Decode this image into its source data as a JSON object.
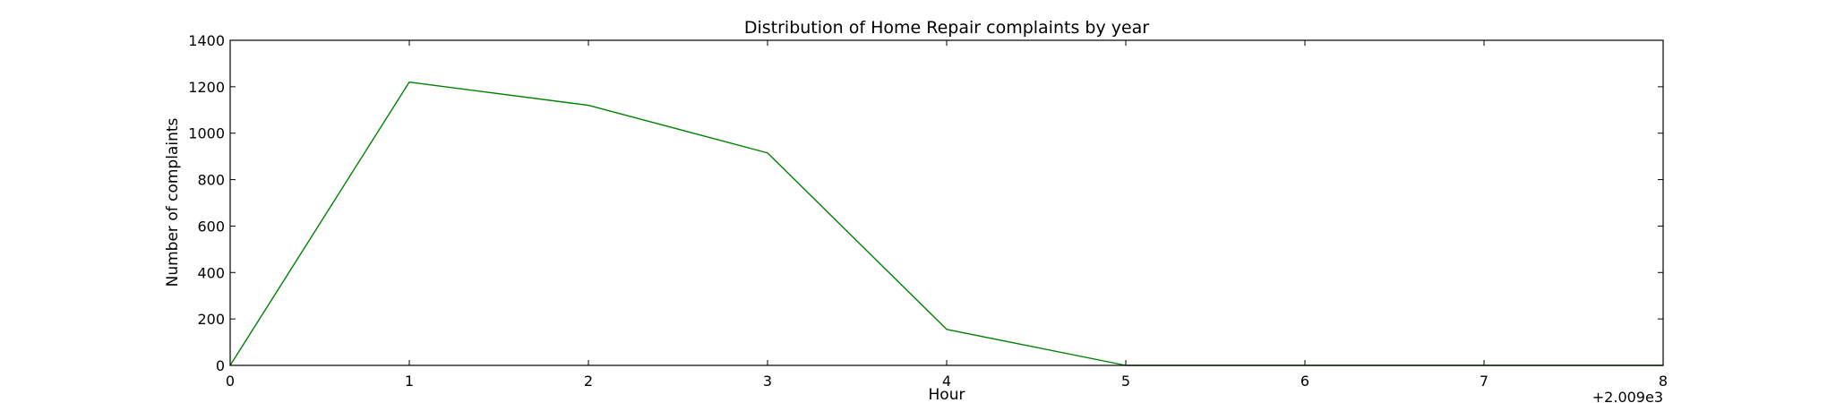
{
  "chart_data": {
    "type": "line",
    "title": "Distribution of  Home Repair complaints by year",
    "xlabel": "Hour",
    "ylabel": "Number of complaints",
    "x_offset_label": "+2.009e3",
    "xlim": [
      0,
      8
    ],
    "ylim": [
      0,
      1400
    ],
    "xticks": [
      0,
      1,
      2,
      3,
      4,
      5,
      6,
      7,
      8
    ],
    "yticks": [
      0,
      200,
      400,
      600,
      800,
      1000,
      1200,
      1400
    ],
    "grid": false,
    "series": [
      {
        "color": "#008000",
        "x": [
          0,
          1,
          2,
          3,
          4,
          5,
          6,
          7,
          8
        ],
        "y": [
          0,
          1220,
          1120,
          915,
          155,
          0,
          0,
          0,
          0
        ]
      }
    ]
  }
}
